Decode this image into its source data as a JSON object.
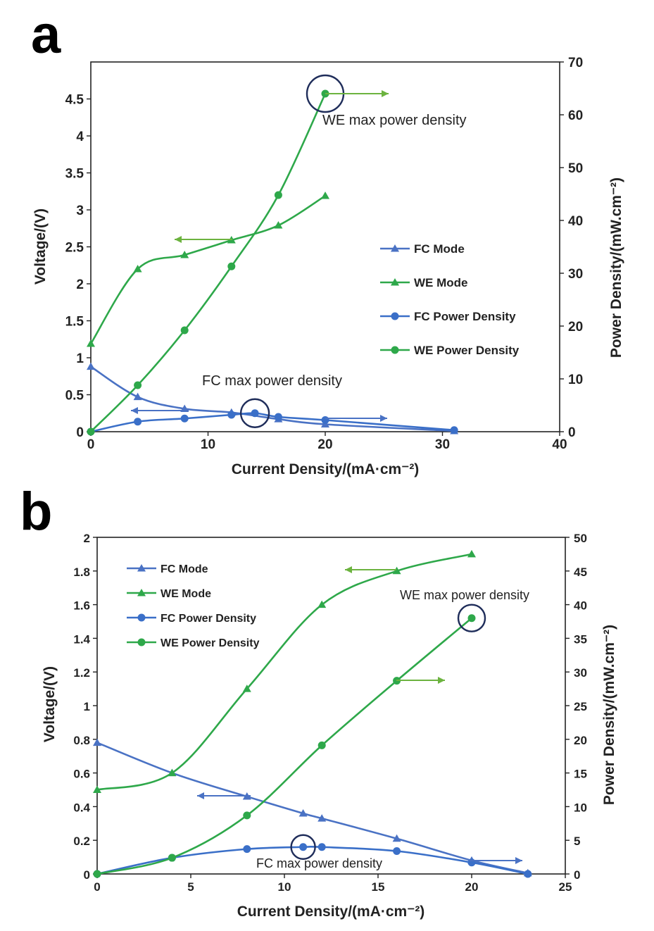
{
  "colors": {
    "fc": "#4a72c4",
    "we": "#2ea84a",
    "circle": "#1f2d5a",
    "axis": "#222222",
    "arrow_fc": "#4a72c4",
    "arrow_we": "#6cb33f"
  },
  "chart_data": [
    {
      "panel_label": "a",
      "type": "line",
      "xlabel": "Current Density/(mA·cm⁻²)",
      "ylabel": "Voltage/(V)",
      "y2label": "Power Density/(mW.cm⁻²)",
      "xlim": [
        0,
        40
      ],
      "ylim": [
        0,
        5
      ],
      "y2lim": [
        0,
        70
      ],
      "xticks": [
        0,
        10,
        20,
        30,
        40
      ],
      "yticks": [
        0,
        0.5,
        1,
        1.5,
        2,
        2.5,
        3,
        3.5,
        4,
        4.5
      ],
      "yticklabels": [
        "0",
        "0.5",
        "1",
        "1.5",
        "2",
        "2.5",
        "3",
        "3.5",
        "4",
        "4.5"
      ],
      "y2ticks": [
        0,
        10,
        20,
        30,
        40,
        50,
        60,
        70
      ],
      "legend_position": "right",
      "series": [
        {
          "name": "FC Mode",
          "axis": "left",
          "marker": "triangle",
          "color": "#4a72c4",
          "x": [
            0,
            4,
            8,
            12,
            16,
            20,
            31
          ],
          "y": [
            0.88,
            0.47,
            0.31,
            0.26,
            0.17,
            0.1,
            0.01
          ]
        },
        {
          "name": "WE Mode",
          "axis": "left",
          "marker": "triangle",
          "color": "#2ea84a",
          "x": [
            0,
            4,
            8,
            12,
            16,
            20
          ],
          "y": [
            1.19,
            2.2,
            2.39,
            2.59,
            2.79,
            3.19
          ]
        },
        {
          "name": "FC Power Density",
          "axis": "right",
          "marker": "circle",
          "color": "#3a6fc8",
          "x": [
            0,
            4,
            8,
            12,
            14,
            16,
            20,
            31
          ],
          "y": [
            0,
            1.9,
            2.5,
            3.2,
            3.5,
            2.8,
            2.2,
            0.3
          ]
        },
        {
          "name": "WE Power Density",
          "axis": "right",
          "marker": "circle",
          "color": "#2ea84a",
          "x": [
            0,
            4,
            8,
            12,
            16,
            20
          ],
          "y": [
            0,
            8.8,
            19.2,
            31.3,
            44.8,
            64
          ]
        }
      ],
      "annotations": [
        {
          "text": "WE max power density",
          "x": 20,
          "y2": 64
        },
        {
          "text": "FC max power density",
          "x": 14,
          "y2": 3.5
        }
      ]
    },
    {
      "panel_label": "b",
      "type": "line",
      "xlabel": "Current Density/(mA·cm⁻²)",
      "ylabel": "Voltage/(V)",
      "y2label": "Power Density/(mW.cm⁻²)",
      "xlim": [
        0,
        25
      ],
      "ylim": [
        0,
        2
      ],
      "y2lim": [
        0,
        50
      ],
      "xticks": [
        0,
        5,
        10,
        15,
        20,
        25
      ],
      "yticks": [
        0,
        0.2,
        0.4,
        0.6,
        0.8,
        1,
        1.2,
        1.4,
        1.6,
        1.8,
        2
      ],
      "yticklabels": [
        "0",
        "0.2",
        "0.4",
        "0.6",
        "0.8",
        "1",
        "1.2",
        "1.4",
        "1.6",
        "1.8",
        "2"
      ],
      "y2ticks": [
        0,
        5,
        10,
        15,
        20,
        25,
        30,
        35,
        40,
        45,
        50
      ],
      "legend_position": "top-left",
      "series": [
        {
          "name": "FC Mode",
          "axis": "left",
          "marker": "triangle",
          "color": "#4a72c4",
          "x": [
            0,
            4,
            8,
            11,
            12,
            16,
            20,
            23
          ],
          "y": [
            0.78,
            0.6,
            0.46,
            0.36,
            0.33,
            0.21,
            0.08,
            0.005
          ]
        },
        {
          "name": "WE Mode",
          "axis": "left",
          "marker": "triangle",
          "color": "#2ea84a",
          "x": [
            0,
            4,
            8,
            12,
            16,
            20
          ],
          "y": [
            0.5,
            0.6,
            1.1,
            1.6,
            1.8,
            1.9
          ]
        },
        {
          "name": "FC Power Density",
          "axis": "right",
          "marker": "circle",
          "color": "#3a6fc8",
          "x": [
            0,
            4,
            8,
            11,
            12,
            16,
            20,
            23
          ],
          "y": [
            0,
            2.4,
            3.7,
            4.0,
            4.0,
            3.4,
            1.7,
            0
          ]
        },
        {
          "name": "WE Power Density",
          "axis": "right",
          "marker": "circle",
          "color": "#2ea84a",
          "x": [
            0,
            4,
            8,
            12,
            16,
            20
          ],
          "y": [
            0,
            2.4,
            8.7,
            19.1,
            28.7,
            38
          ]
        }
      ],
      "annotations": [
        {
          "text": "WE max power density",
          "x": 20,
          "y2": 38
        },
        {
          "text": "FC max power density",
          "x": 11,
          "y2": 4.0
        }
      ]
    }
  ]
}
